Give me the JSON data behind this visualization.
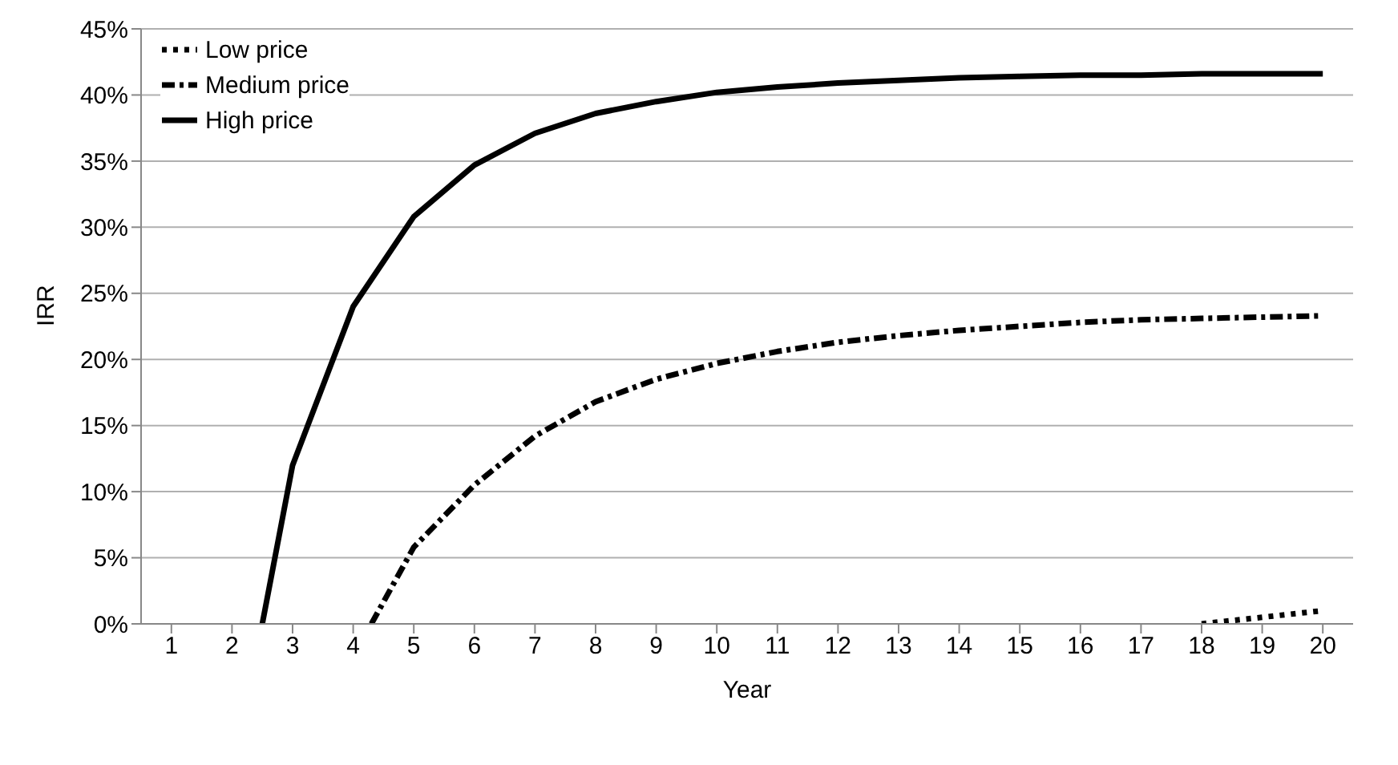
{
  "chart_data": {
    "type": "line",
    "xlabel": "Year",
    "ylabel": "IRR",
    "xlim": [
      0.5,
      20.5
    ],
    "xticks": [
      1,
      2,
      3,
      4,
      5,
      6,
      7,
      8,
      9,
      10,
      11,
      12,
      13,
      14,
      15,
      16,
      17,
      18,
      19,
      20
    ],
    "ylim": [
      0,
      45
    ],
    "yticks": [
      {
        "value": 0,
        "label": "0%"
      },
      {
        "value": 5,
        "label": "5%"
      },
      {
        "value": 10,
        "label": "10%"
      },
      {
        "value": 15,
        "label": "15%"
      },
      {
        "value": 20,
        "label": "20%"
      },
      {
        "value": 25,
        "label": "25%"
      },
      {
        "value": 30,
        "label": "30%"
      },
      {
        "value": 35,
        "label": "35%"
      },
      {
        "value": 40,
        "label": "40%"
      },
      {
        "value": 45,
        "label": "45%"
      }
    ],
    "grid": "y",
    "legend": "top left",
    "marker": "none",
    "series": [
      {
        "name": "Low price",
        "color": "#000000",
        "line_style": "dotted",
        "x": [
          18,
          19,
          20
        ],
        "values": [
          0,
          0.5,
          1.0
        ]
      },
      {
        "name": "Medium price",
        "color": "#000000",
        "line_style": "dashed",
        "x": [
          4.3,
          5,
          6,
          7,
          8,
          9,
          10,
          11,
          12,
          13,
          14,
          15,
          16,
          17,
          18,
          19,
          20
        ],
        "values": [
          0,
          5.8,
          10.5,
          14.2,
          16.8,
          18.5,
          19.7,
          20.6,
          21.3,
          21.8,
          22.2,
          22.5,
          22.8,
          23.0,
          23.1,
          23.2,
          23.3
        ]
      },
      {
        "name": "High price",
        "color": "#000000",
        "line_style": "solid",
        "x": [
          2.5,
          3,
          4,
          5,
          6,
          7,
          8,
          9,
          10,
          11,
          12,
          13,
          14,
          15,
          16,
          17,
          18,
          19,
          20
        ],
        "values": [
          0,
          12.0,
          24.0,
          30.8,
          34.7,
          37.1,
          38.6,
          39.5,
          40.2,
          40.6,
          40.9,
          41.1,
          41.3,
          41.4,
          41.5,
          41.5,
          41.6,
          41.6,
          41.6
        ]
      }
    ]
  }
}
